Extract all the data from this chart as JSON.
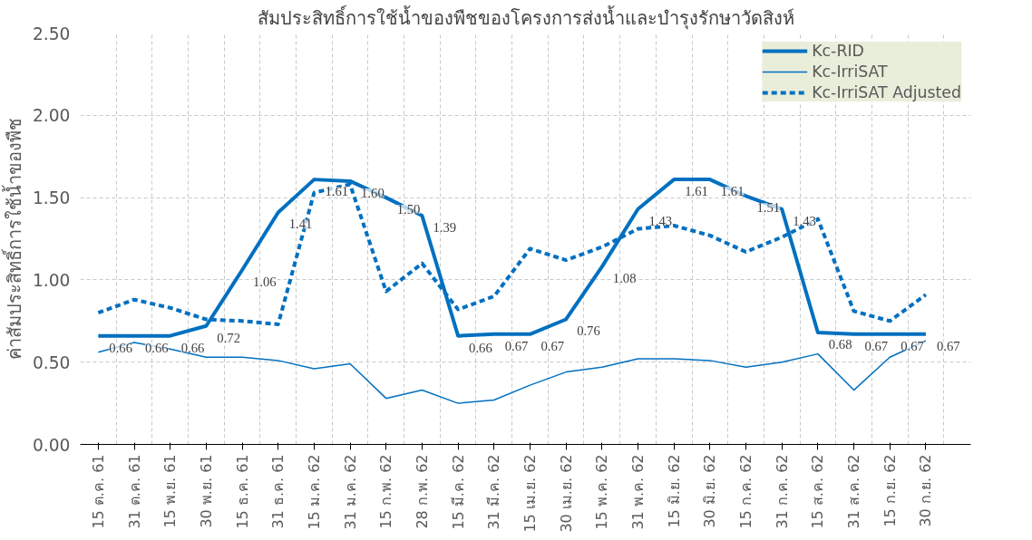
{
  "chart_data": {
    "type": "line",
    "title": "สัมประสิทธิ์การใช้น้ำของพืชของโครงการส่งน้ำและบำรุงรักษาวัดสิงห์",
    "ylabel": "ค่าสัมประสิทธิ์การใช้น้ำของพืช",
    "categories": [
      "15 ต.ค. 61",
      "31 ต.ค. 61",
      "15 พ.ย. 61",
      "30 พ.ย. 61",
      "15 ธ.ค. 61",
      "31 ธ.ค. 61",
      "15 ม.ค. 62",
      "31 ม.ค. 62",
      "15 ก.พ. 62",
      "28 ก.พ. 62",
      "15 มี.ค. 62",
      "31 มี.ค. 62",
      "15 เม.ย. 62",
      "30 เม.ย. 62",
      "15 พ.ค. 62",
      "31 พ.ค. 62",
      "15 มิ.ย. 62",
      "30 มิ.ย. 62",
      "15 ก.ค. 62",
      "31 ก.ค. 62",
      "15 ส.ค. 62",
      "31 ส.ค. 62",
      "15 ก.ย. 62",
      "30 ก.ย. 62"
    ],
    "series": [
      {
        "name": "Kc-RID",
        "color": "#0070c0",
        "line_style": "solid",
        "values": [
          0.66,
          0.66,
          0.66,
          0.72,
          1.06,
          1.41,
          1.61,
          1.6,
          1.5,
          1.39,
          0.66,
          0.67,
          0.67,
          0.76,
          1.08,
          1.43,
          1.61,
          1.61,
          1.51,
          1.43,
          0.68,
          0.67,
          0.67,
          0.67
        ],
        "value_labels": [
          "0.66",
          "0.66",
          "0.66",
          "0.72",
          "1.06",
          "1.41",
          "1.61",
          "1.60",
          "1.50",
          "1.39",
          "0.66",
          "0.67",
          "0.67",
          "0.76",
          "1.08",
          "1.43",
          "1.61",
          "1.61",
          "1.51",
          "1.43",
          "0.68",
          "0.67",
          "0.67",
          "0.67"
        ]
      },
      {
        "name": "Kc-IrriSAT",
        "color": "#0070c0",
        "line_style": "solid",
        "values": [
          0.56,
          0.62,
          0.58,
          0.53,
          0.53,
          0.51,
          0.46,
          0.49,
          0.28,
          0.33,
          0.25,
          0.27,
          0.36,
          0.44,
          0.47,
          0.52,
          0.52,
          0.51,
          0.47,
          0.5,
          0.55,
          0.33,
          0.53,
          0.63
        ]
      },
      {
        "name": "Kc-IrriSAT Adjusted",
        "color": "#0070c0",
        "line_style": "dashed",
        "values": [
          0.8,
          0.88,
          0.83,
          0.76,
          0.75,
          0.73,
          1.53,
          1.58,
          0.93,
          1.1,
          0.82,
          0.9,
          1.19,
          1.12,
          1.2,
          1.31,
          1.33,
          1.27,
          1.17,
          1.26,
          1.37,
          0.81,
          0.75,
          0.91
        ]
      }
    ],
    "ylim": [
      0,
      2.5
    ],
    "yticks": [
      {
        "value": 0,
        "label": "0.00"
      },
      {
        "value": 0.5,
        "label": "0.50"
      },
      {
        "value": 1,
        "label": "1.00"
      },
      {
        "value": 1.5,
        "label": "1.50"
      },
      {
        "value": 2,
        "label": "2.00"
      },
      {
        "value": 2.5,
        "label": "2.50"
      }
    ],
    "grid": true,
    "legend": "top right",
    "marker": "none"
  }
}
